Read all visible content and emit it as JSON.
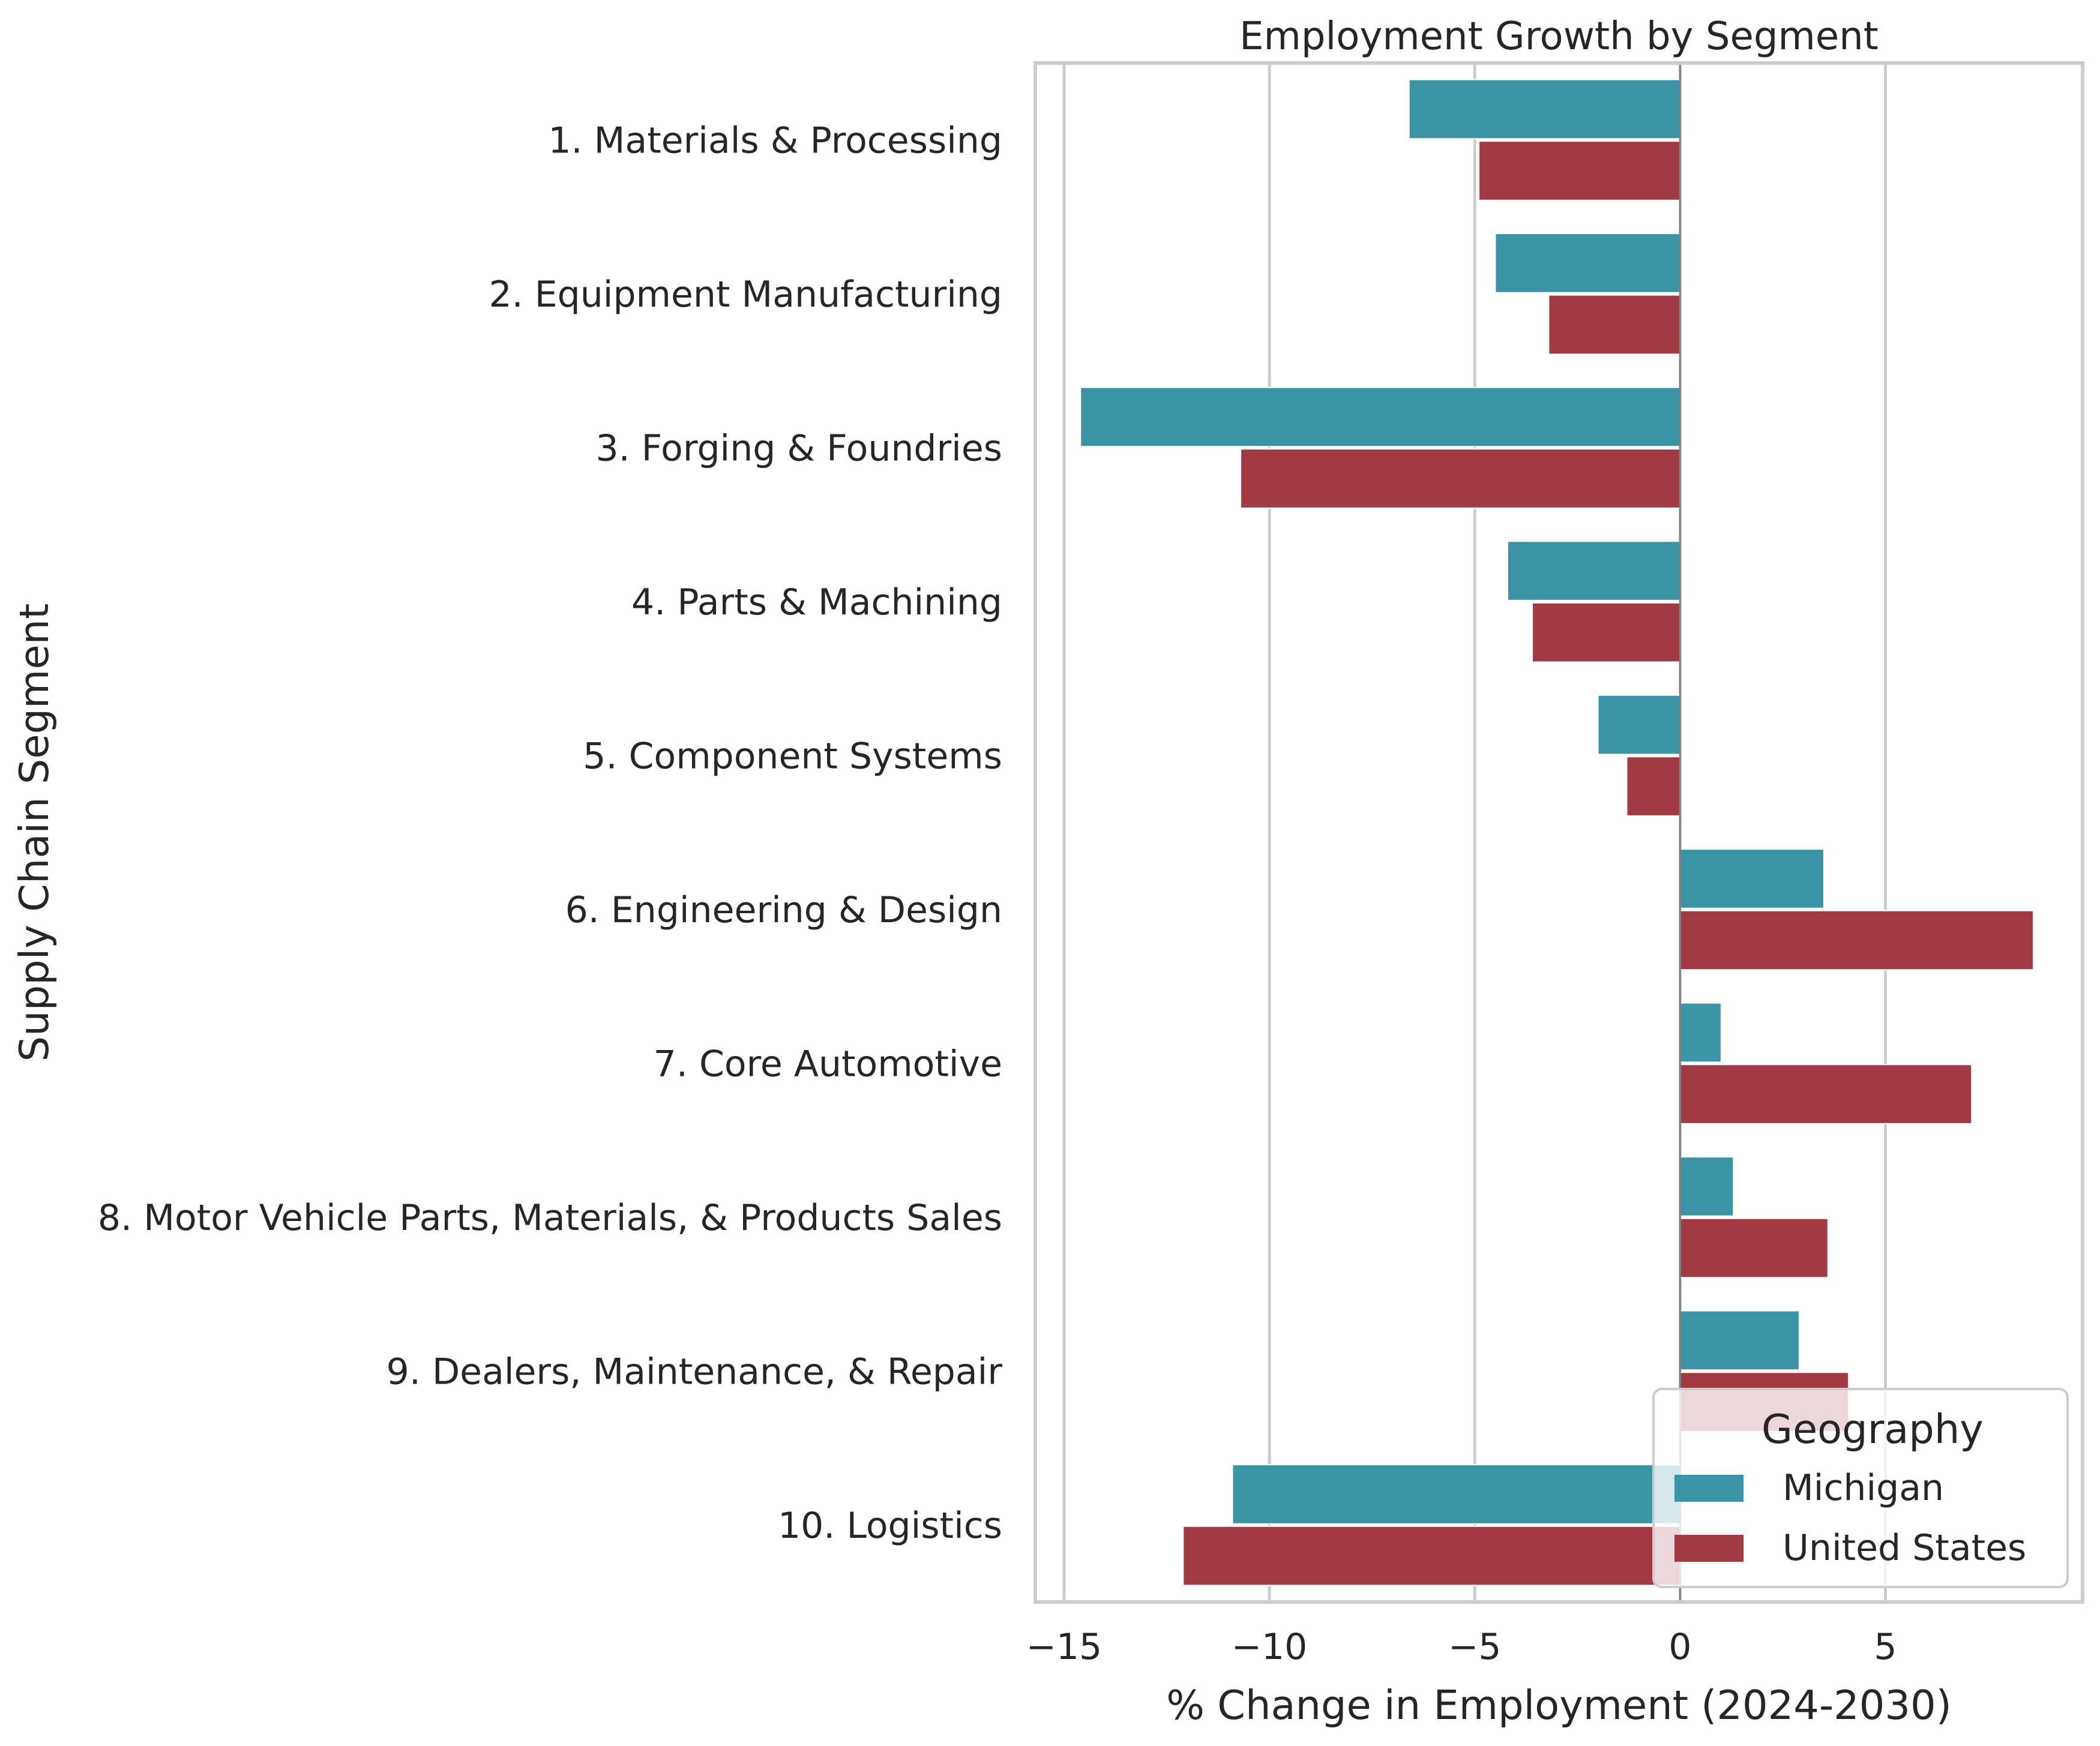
{
  "chart_data": {
    "type": "bar",
    "orientation": "horizontal",
    "title": "Employment Growth by Segment",
    "xlabel": "% Change in Employment (2024-2030)",
    "ylabel": "Supply Chain Segment",
    "xlim": [
      -15.7,
      9.8
    ],
    "xticks": [
      -15,
      -10,
      -5,
      0,
      5
    ],
    "xtick_labels": [
      "−15",
      "−10",
      "−5",
      "0",
      "5"
    ],
    "grid": "vertical",
    "categories": [
      "1. Materials & Processing",
      "2. Equipment Manufacturing",
      "3. Forging & Foundries",
      "4. Parts & Machining",
      "5. Component Systems",
      "6. Engineering & Design",
      "7. Core Automotive",
      "8. Motor Vehicle Parts, Materials, & Products Sales",
      "9. Dealers, Maintenance, & Repair",
      "10. Logistics"
    ],
    "series": [
      {
        "name": "Michigan",
        "color": "#3b93a6",
        "values": [
          -6.6,
          -4.5,
          -14.6,
          -4.2,
          -2.0,
          3.5,
          1.0,
          1.3,
          2.9,
          -10.9
        ]
      },
      {
        "name": "United States",
        "color": "#a13a42",
        "values": [
          -4.9,
          -3.2,
          -10.7,
          -3.6,
          -1.3,
          8.6,
          7.1,
          3.6,
          4.1,
          -12.1
        ]
      }
    ],
    "legend": {
      "title": "Geography",
      "placement": "lower-right"
    }
  }
}
